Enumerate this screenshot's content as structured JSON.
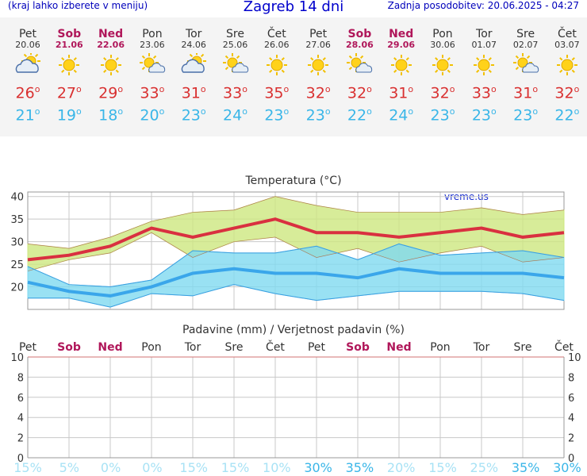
{
  "header": {
    "left_note": "(kraj lahko izberete v meniju)",
    "title": "Zagreb 14 dni",
    "updated": "Zadnja posodobitev: 20.06.2025 - 04:27"
  },
  "colors": {
    "max_line": "#d93040",
    "max_band": "#cde77f",
    "min_line": "#3aa6ea",
    "min_band": "#7fd9f0",
    "weekend": "#b0175a",
    "precip_low": "#a8e2f5",
    "precip_high": "#3ab6e8"
  },
  "days": [
    {
      "name": "Pet",
      "date": "20.06",
      "weekend": false,
      "icon": "partly-cloudy-icon",
      "max": "26",
      "min": "21",
      "precip": "15%",
      "pl": 15
    },
    {
      "name": "Sob",
      "date": "21.06",
      "weekend": true,
      "icon": "sunny-icon",
      "max": "27",
      "min": "19",
      "precip": "5%",
      "pl": 5
    },
    {
      "name": "Ned",
      "date": "22.06",
      "weekend": true,
      "icon": "sunny-icon",
      "max": "29",
      "min": "18",
      "precip": "0%",
      "pl": 0
    },
    {
      "name": "Pon",
      "date": "23.06",
      "weekend": false,
      "icon": "sun-cloud-icon",
      "max": "33",
      "min": "20",
      "precip": "0%",
      "pl": 0
    },
    {
      "name": "Tor",
      "date": "24.06",
      "weekend": false,
      "icon": "partly-cloudy-icon",
      "max": "31",
      "min": "23",
      "precip": "15%",
      "pl": 15
    },
    {
      "name": "Sre",
      "date": "25.06",
      "weekend": false,
      "icon": "sun-cloud-icon",
      "max": "33",
      "min": "24",
      "precip": "15%",
      "pl": 15
    },
    {
      "name": "Čet",
      "date": "26.06",
      "weekend": false,
      "icon": "sunny-icon",
      "max": "35",
      "min": "23",
      "precip": "10%",
      "pl": 10
    },
    {
      "name": "Pet",
      "date": "27.06",
      "weekend": false,
      "icon": "sunny-icon",
      "max": "32",
      "min": "23",
      "precip": "30%",
      "pl": 30
    },
    {
      "name": "Sob",
      "date": "28.06",
      "weekend": true,
      "icon": "sun-cloud-icon",
      "max": "32",
      "min": "22",
      "precip": "35%",
      "pl": 35
    },
    {
      "name": "Ned",
      "date": "29.06",
      "weekend": true,
      "icon": "sunny-icon",
      "max": "31",
      "min": "24",
      "precip": "20%",
      "pl": 20
    },
    {
      "name": "Pon",
      "date": "30.06",
      "weekend": false,
      "icon": "sunny-icon",
      "max": "32",
      "min": "23",
      "precip": "15%",
      "pl": 15
    },
    {
      "name": "Tor",
      "date": "01.07",
      "weekend": false,
      "icon": "sunny-icon",
      "max": "33",
      "min": "23",
      "precip": "25%",
      "pl": 25
    },
    {
      "name": "Sre",
      "date": "02.07",
      "weekend": false,
      "icon": "sun-cloud-icon",
      "max": "31",
      "min": "23",
      "precip": "35%",
      "pl": 35
    },
    {
      "name": "Čet",
      "date": "03.07",
      "weekend": false,
      "icon": "sunny-icon",
      "max": "32",
      "min": "22",
      "precip": "30%",
      "pl": 30
    }
  ],
  "chart_data": [
    {
      "type": "line",
      "title": "Temperatura (°C)",
      "watermark": "vreme.us",
      "categories": [
        "20.06",
        "21.06",
        "22.06",
        "23.06",
        "24.06",
        "25.06",
        "26.06",
        "27.06",
        "28.06",
        "29.06",
        "30.06",
        "01.07",
        "02.07",
        "03.07"
      ],
      "ylim": [
        15,
        41
      ],
      "yticks": [
        20,
        25,
        30,
        35,
        40
      ],
      "grid": true,
      "series": [
        {
          "values": [
            26,
            27,
            29,
            33,
            31,
            33,
            35,
            32,
            32,
            31,
            32,
            33,
            31,
            32
          ]
        },
        {
          "values": [
            21,
            19,
            18,
            20,
            23,
            24,
            23,
            23,
            22,
            24,
            23,
            23,
            23,
            22
          ]
        }
      ],
      "max_band_upper": [
        29.5,
        28.5,
        31,
        34.5,
        36.5,
        37,
        40,
        38,
        36.5,
        36.5,
        36.5,
        37.5,
        36,
        37
      ],
      "max_band_lower": [
        23.5,
        26,
        27.5,
        32,
        26.5,
        30,
        31,
        26.5,
        28.5,
        25.5,
        27.5,
        29,
        25.5,
        26.5
      ],
      "min_band_upper": [
        24.5,
        20.5,
        20,
        21.5,
        28,
        27.5,
        27.5,
        29,
        26,
        29.5,
        27,
        27.5,
        28,
        26.5
      ],
      "min_band_lower": [
        17.5,
        17.5,
        15.5,
        18.5,
        18,
        20.5,
        18.5,
        17,
        18,
        19,
        19,
        19,
        18.5,
        17
      ]
    },
    {
      "type": "bar",
      "title": "Padavine (mm) / Verjetnost padavin (%)",
      "categories": [
        "Pet",
        "Sob",
        "Ned",
        "Pon",
        "Tor",
        "Sre",
        "Čet",
        "Pet",
        "Sob",
        "Ned",
        "Pon",
        "Tor",
        "Sre",
        "Čet"
      ],
      "ylim": [
        0,
        10
      ],
      "yticks": [
        0,
        2,
        4,
        6,
        8,
        10
      ],
      "values": [
        0,
        0,
        0,
        0,
        0,
        0,
        0,
        0,
        0,
        0,
        0,
        0,
        0,
        0
      ],
      "grid": true
    }
  ]
}
